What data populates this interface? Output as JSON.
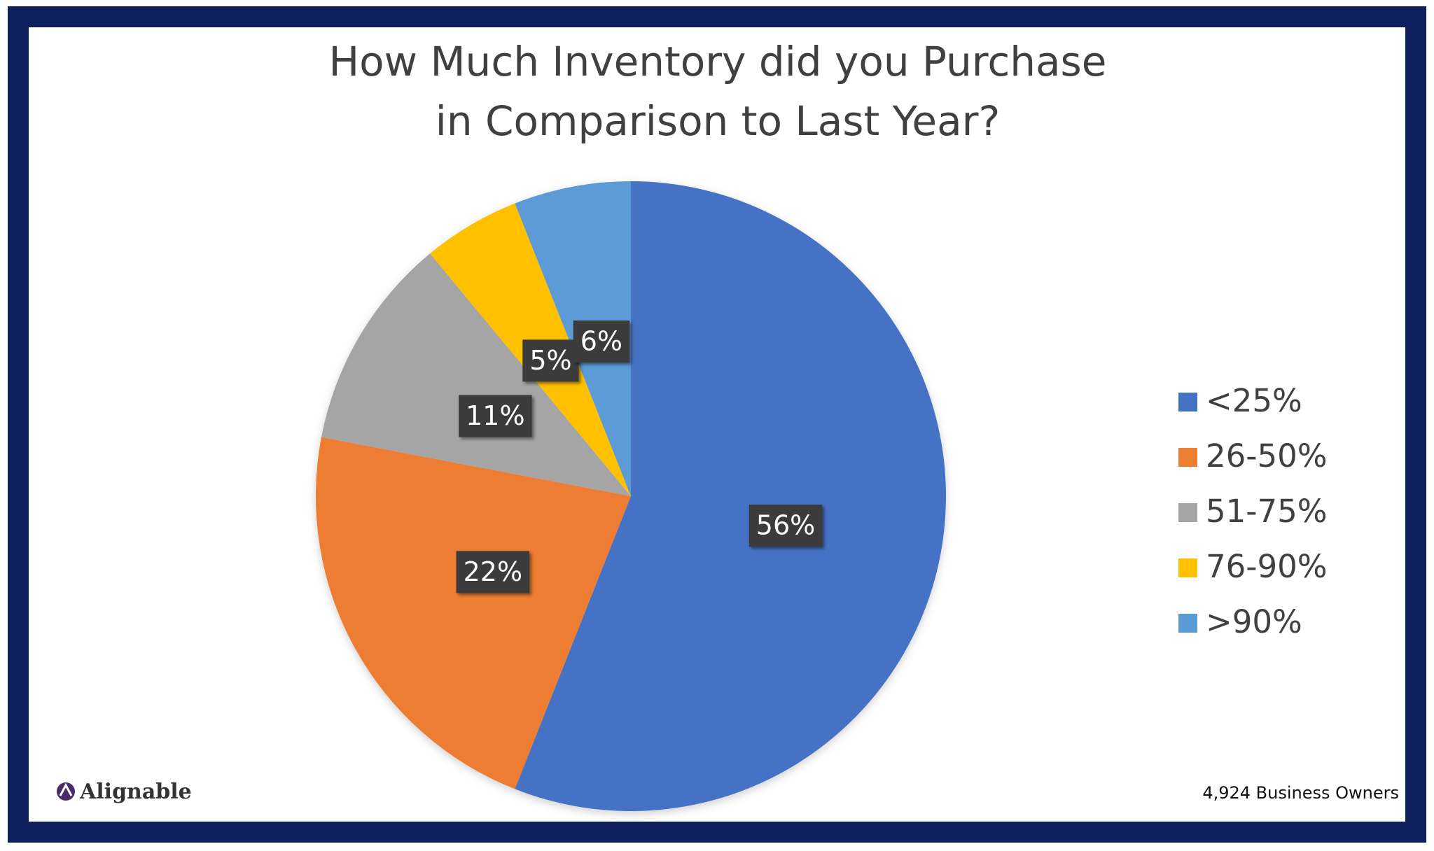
{
  "chart_data": {
    "type": "pie",
    "title": [
      "How Much Inventory did you Purchase",
      "in Comparison to Last Year?"
    ],
    "categories": [
      "<25%",
      "26-50%",
      "51-75%",
      "76-90%",
      ">90%"
    ],
    "values": [
      56,
      22,
      11,
      5,
      6
    ],
    "value_labels": [
      "56%",
      "22%",
      "11%",
      "5%",
      "6%"
    ],
    "colors": [
      "#4472c4",
      "#ed7d31",
      "#a5a5a5",
      "#ffc000",
      "#5b9bd5"
    ],
    "legend": "right",
    "footnote": "4,924 Business Owners",
    "brand": "Alignable"
  }
}
